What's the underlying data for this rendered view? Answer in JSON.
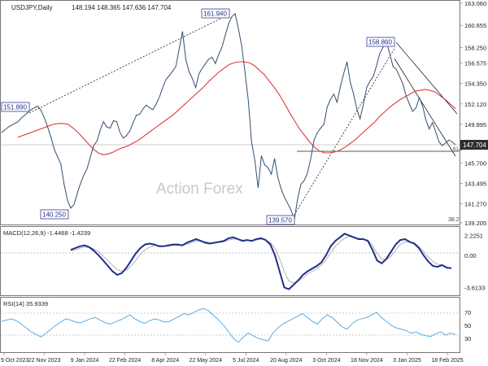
{
  "header": {
    "symbol_line": "USDJPY,Daily",
    "ohlc_line": "148.194 148.365 147.636 147.704"
  },
  "watermark": "Action Forex",
  "colors": {
    "price": "#2f4f6f",
    "sma": "#e0393a",
    "macd_line": "#1f2f8c",
    "macd_signal": "#a9a9a9",
    "rsi": "#4aa3df",
    "channel": "#222222",
    "label_border": "#3b3b8c",
    "current_bg": "#2d2d2d"
  },
  "chart_data": [
    {
      "type": "line",
      "panel": "price",
      "title": "USDJPY,Daily",
      "x_ticks": [
        "9 Oct 2023",
        "22 Nov 2023",
        "9 Jan 2024",
        "22 Feb 2024",
        "8 Apr 2024",
        "22 May 2024",
        "5 Jul 2024",
        "20 Aug 2024",
        "3 Oct 2024",
        "18 Nov 2024",
        "3 Jan 2025",
        "18 Feb 2025"
      ],
      "y_ticks": [
        "163.060",
        "160.655",
        "158.250",
        "156.575",
        "154.350",
        "152.120",
        "149.895",
        "147.704",
        "145.700",
        "143.495",
        "141.270",
        "139.205"
      ],
      "ylim": [
        139.205,
        163.06
      ],
      "series": [
        {
          "role": "price",
          "values": [
            149.0,
            149.3,
            149.6,
            149.8,
            150.0,
            150.2,
            150.6,
            150.9,
            151.2,
            151.5,
            151.7,
            151.9,
            151.4,
            150.6,
            149.6,
            148.5,
            147.2,
            146.4,
            145.6,
            143.4,
            141.7,
            140.8,
            141.2,
            142.4,
            143.5,
            144.4,
            145.1,
            146.4,
            147.6,
            148.1,
            149.3,
            150.2,
            149.6,
            149.5,
            150.3,
            150.2,
            149.0,
            148.4,
            148.7,
            149.2,
            150.1,
            150.9,
            151.0,
            151.6,
            152.0,
            151.7,
            151.5,
            152.1,
            152.9,
            153.9,
            154.8,
            155.2,
            155.7,
            156.2,
            158.1,
            160.0,
            157.0,
            155.6,
            154.9,
            153.9,
            155.4,
            156.0,
            156.5,
            157.0,
            157.2,
            156.5,
            157.5,
            158.3,
            159.6,
            160.8,
            161.6,
            161.94,
            160.3,
            158.4,
            155.6,
            152.5,
            148.0,
            146.0,
            143.0,
            146.5,
            145.5,
            145.2,
            144.5,
            146.2,
            144.1,
            142.9,
            142.0,
            141.3,
            140.6,
            139.57,
            141.8,
            143.4,
            143.8,
            144.6,
            146.2,
            148.2,
            149.0,
            149.5,
            149.9,
            151.8,
            152.6,
            153.2,
            152.3,
            154.0,
            155.4,
            156.7,
            154.5,
            153.2,
            151.6,
            150.5,
            152.1,
            153.9,
            154.6,
            155.1,
            156.3,
            157.6,
            158.3,
            158.86,
            157.6,
            156.2,
            155.9,
            155.1,
            154.3,
            153.0,
            152.1,
            151.3,
            151.7,
            152.8,
            151.9,
            150.4,
            149.4,
            150.1,
            149.1,
            148.0,
            147.6,
            147.9,
            148.2,
            148.0,
            147.704
          ],
          "x_range": [
            "9 Oct 2023",
            "18 Feb 2025"
          ]
        },
        {
          "role": "sma",
          "values": [
            148.5,
            148.7,
            148.9,
            149.1,
            149.3,
            149.5,
            149.7,
            149.9,
            150.0,
            150.0,
            149.9,
            149.5,
            149.0,
            148.4,
            147.8,
            147.2,
            146.8,
            146.6,
            146.7,
            146.9,
            147.2,
            147.4,
            147.6,
            147.9,
            148.2,
            148.6,
            149.0,
            149.4,
            149.8,
            150.2,
            150.6,
            151.0,
            151.5,
            152.0,
            152.5,
            153.0,
            153.5,
            154.0,
            154.6,
            155.1,
            155.6,
            156.0,
            156.4,
            156.6,
            156.7,
            156.7,
            156.6,
            156.3,
            155.8,
            155.3,
            154.6,
            153.9,
            153.1,
            152.2,
            151.2,
            150.3,
            149.4,
            148.7,
            148.0,
            147.4,
            147.0,
            146.8,
            146.8,
            146.9,
            147.1,
            147.4,
            147.8,
            148.2,
            148.7,
            149.2,
            149.7,
            150.2,
            150.8,
            151.3,
            151.8,
            152.2,
            152.6,
            152.9,
            153.2,
            153.5,
            153.6,
            153.7,
            153.6,
            153.4,
            153.0,
            152.6,
            152.1,
            151.6
          ],
          "x_range": [
            "9 Oct 2023",
            "18 Feb 2025"
          ]
        }
      ],
      "annotations": [
        "161.940",
        "151.890",
        "140.250",
        "139.570",
        "158.860",
        "38.2",
        "61.8"
      ],
      "current_value": "147.704"
    },
    {
      "type": "line",
      "panel": "macd",
      "title": "MACD(12,26,9) -1.4468 -1.4239",
      "y_ticks": [
        "2.2251",
        "0.00",
        "-3.6133"
      ],
      "ylim": [
        -4.2,
        2.8
      ],
      "series": [
        {
          "role": "macd_line",
          "values": [
            0.6,
            0.8,
            1.0,
            1.1,
            0.9,
            0.5,
            0.0,
            -0.6,
            -1.2,
            -1.8,
            -2.2,
            -2.0,
            -1.4,
            -0.6,
            0.2,
            0.8,
            1.2,
            1.3,
            1.2,
            1.0,
            1.0,
            1.1,
            1.2,
            1.2,
            1.1,
            1.4,
            1.6,
            1.8,
            1.6,
            1.4,
            1.3,
            1.4,
            1.5,
            1.6,
            1.9,
            2.0,
            1.8,
            1.6,
            1.7,
            1.6,
            1.8,
            1.9,
            1.7,
            1.2,
            0.0,
            -1.8,
            -3.6,
            -3.8,
            -3.3,
            -2.8,
            -2.2,
            -1.8,
            -1.5,
            -1.2,
            -0.8,
            0.0,
            1.0,
            1.6,
            2.0,
            2.4,
            2.2,
            2.0,
            1.8,
            1.8,
            1.6,
            0.6,
            -0.6,
            -0.9,
            -0.4,
            0.4,
            1.2,
            1.7,
            1.8,
            1.5,
            1.3,
            0.8,
            0.0,
            -0.7,
            -1.2,
            -1.3,
            -1.1,
            -1.4,
            -1.4468
          ]
        },
        {
          "role": "signal",
          "values": [
            0.5,
            0.6,
            0.8,
            0.9,
            0.9,
            0.7,
            0.4,
            -0.1,
            -0.6,
            -1.1,
            -1.6,
            -1.8,
            -1.7,
            -1.2,
            -0.6,
            0.1,
            0.6,
            0.9,
            1.1,
            1.1,
            1.0,
            1.0,
            1.1,
            1.1,
            1.1,
            1.2,
            1.4,
            1.6,
            1.6,
            1.5,
            1.4,
            1.4,
            1.4,
            1.5,
            1.7,
            1.8,
            1.8,
            1.7,
            1.7,
            1.6,
            1.7,
            1.8,
            1.7,
            1.4,
            0.8,
            -0.4,
            -1.8,
            -2.9,
            -3.1,
            -2.9,
            -2.5,
            -2.1,
            -1.8,
            -1.5,
            -1.1,
            -0.5,
            0.3,
            1.0,
            1.5,
            1.9,
            2.1,
            2.0,
            1.9,
            1.8,
            1.7,
            1.1,
            0.2,
            -0.4,
            -0.5,
            -0.1,
            0.6,
            1.2,
            1.5,
            1.5,
            1.4,
            1.0,
            0.4,
            -0.2,
            -0.7,
            -1.0,
            -1.1,
            -1.3,
            -1.4239
          ]
        }
      ]
    },
    {
      "type": "line",
      "panel": "rsi",
      "title": "RSI(14) 35.9339",
      "y_ticks": [
        "70",
        "50",
        "30"
      ],
      "ylim": [
        0,
        100
      ],
      "series": [
        {
          "role": "rsi",
          "values": [
            56,
            58,
            60,
            57,
            52,
            46,
            40,
            36,
            32,
            38,
            44,
            50,
            55,
            60,
            58,
            55,
            54,
            57,
            60,
            62,
            58,
            54,
            52,
            55,
            58,
            62,
            66,
            60,
            56,
            53,
            57,
            60,
            58,
            55,
            56,
            60,
            64,
            68,
            66,
            70,
            74,
            76,
            72,
            65,
            58,
            50,
            40,
            30,
            24,
            32,
            38,
            34,
            30,
            28,
            26,
            38,
            46,
            52,
            56,
            60,
            64,
            68,
            62,
            56,
            52,
            60,
            66,
            62,
            55,
            48,
            44,
            52,
            58,
            60,
            62,
            66,
            70,
            62,
            56,
            50,
            46,
            44,
            42,
            38,
            40,
            36,
            34,
            33,
            37,
            40,
            35,
            38,
            35.9339
          ]
        }
      ]
    }
  ]
}
